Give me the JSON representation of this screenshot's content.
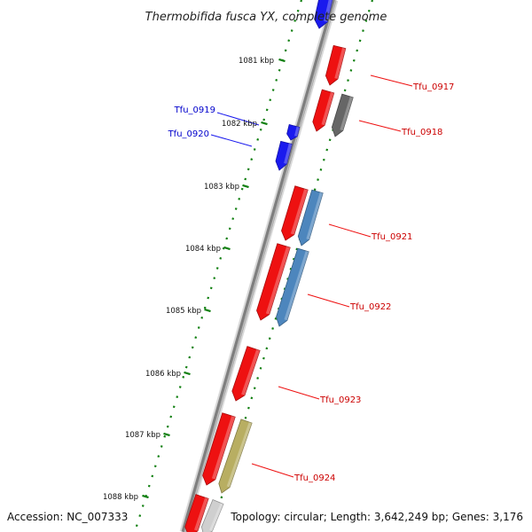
{
  "title": "Thermobifida fusca YX, complete genome",
  "footer": {
    "accession": "Accession: NC_007333",
    "topology": "Topology: circular; Length: 3,642,249 bp; Genes: 3,176"
  },
  "scale_labels": [
    "1081 kbp",
    "1082 kbp",
    "1083 kbp",
    "1084 kbp",
    "1085 kbp",
    "1086 kbp",
    "1087 kbp",
    "1088 kbp"
  ],
  "colors": {
    "red": "#ee1111",
    "red_dark": "#aa0000",
    "blue": "#1a1aee",
    "steelblue": "#4d86bd",
    "gray": "#666666",
    "olive": "#b8ae62",
    "lightgray": "#cfcfcf",
    "tick_green": "#128012",
    "backbone": "#8a8a8a",
    "label_red": "#cc0000",
    "label_blue": "#0000cc"
  },
  "genes": [
    {
      "id": "Tfu_0917",
      "label": "Tfu_0917",
      "color": "red",
      "strand": "forward",
      "labeled": true
    },
    {
      "id": "Tfu_0918",
      "label": "Tfu_0918",
      "color": "red",
      "strand": "forward",
      "labeled": true
    },
    {
      "id": "Tfu_0918_pair",
      "label": "",
      "color": "gray",
      "strand": "reverse",
      "labeled": false
    },
    {
      "id": "Tfu_0919",
      "label": "Tfu_0919",
      "color": "blue",
      "strand": "forward",
      "labeled": true
    },
    {
      "id": "Tfu_0920",
      "label": "Tfu_0920",
      "color": "blue",
      "strand": "forward",
      "labeled": true
    },
    {
      "id": "Tfu_0921",
      "label": "Tfu_0921",
      "color": "red",
      "strand": "forward",
      "labeled": true
    },
    {
      "id": "Tfu_0921_pair",
      "label": "",
      "color": "steelblue",
      "strand": "reverse",
      "labeled": false
    },
    {
      "id": "Tfu_0922",
      "label": "Tfu_0922",
      "color": "red",
      "strand": "forward",
      "labeled": true
    },
    {
      "id": "Tfu_0922_pair",
      "label": "",
      "color": "steelblue",
      "strand": "reverse",
      "labeled": false
    },
    {
      "id": "Tfu_0923",
      "label": "Tfu_0923",
      "color": "red",
      "strand": "forward",
      "labeled": true
    },
    {
      "id": "Tfu_0924",
      "label": "Tfu_0924",
      "color": "red",
      "strand": "forward",
      "labeled": true
    },
    {
      "id": "Tfu_0924_pair",
      "label": "",
      "color": "olive",
      "strand": "reverse",
      "labeled": false
    },
    {
      "id": "top_blue",
      "label": "",
      "color": "blue",
      "strand": "forward",
      "labeled": false
    },
    {
      "id": "bottom_red",
      "label": "",
      "color": "red",
      "strand": "forward",
      "labeled": false
    },
    {
      "id": "bottom_gray",
      "label": "",
      "color": "lightgray",
      "strand": "reverse",
      "labeled": false
    }
  ]
}
